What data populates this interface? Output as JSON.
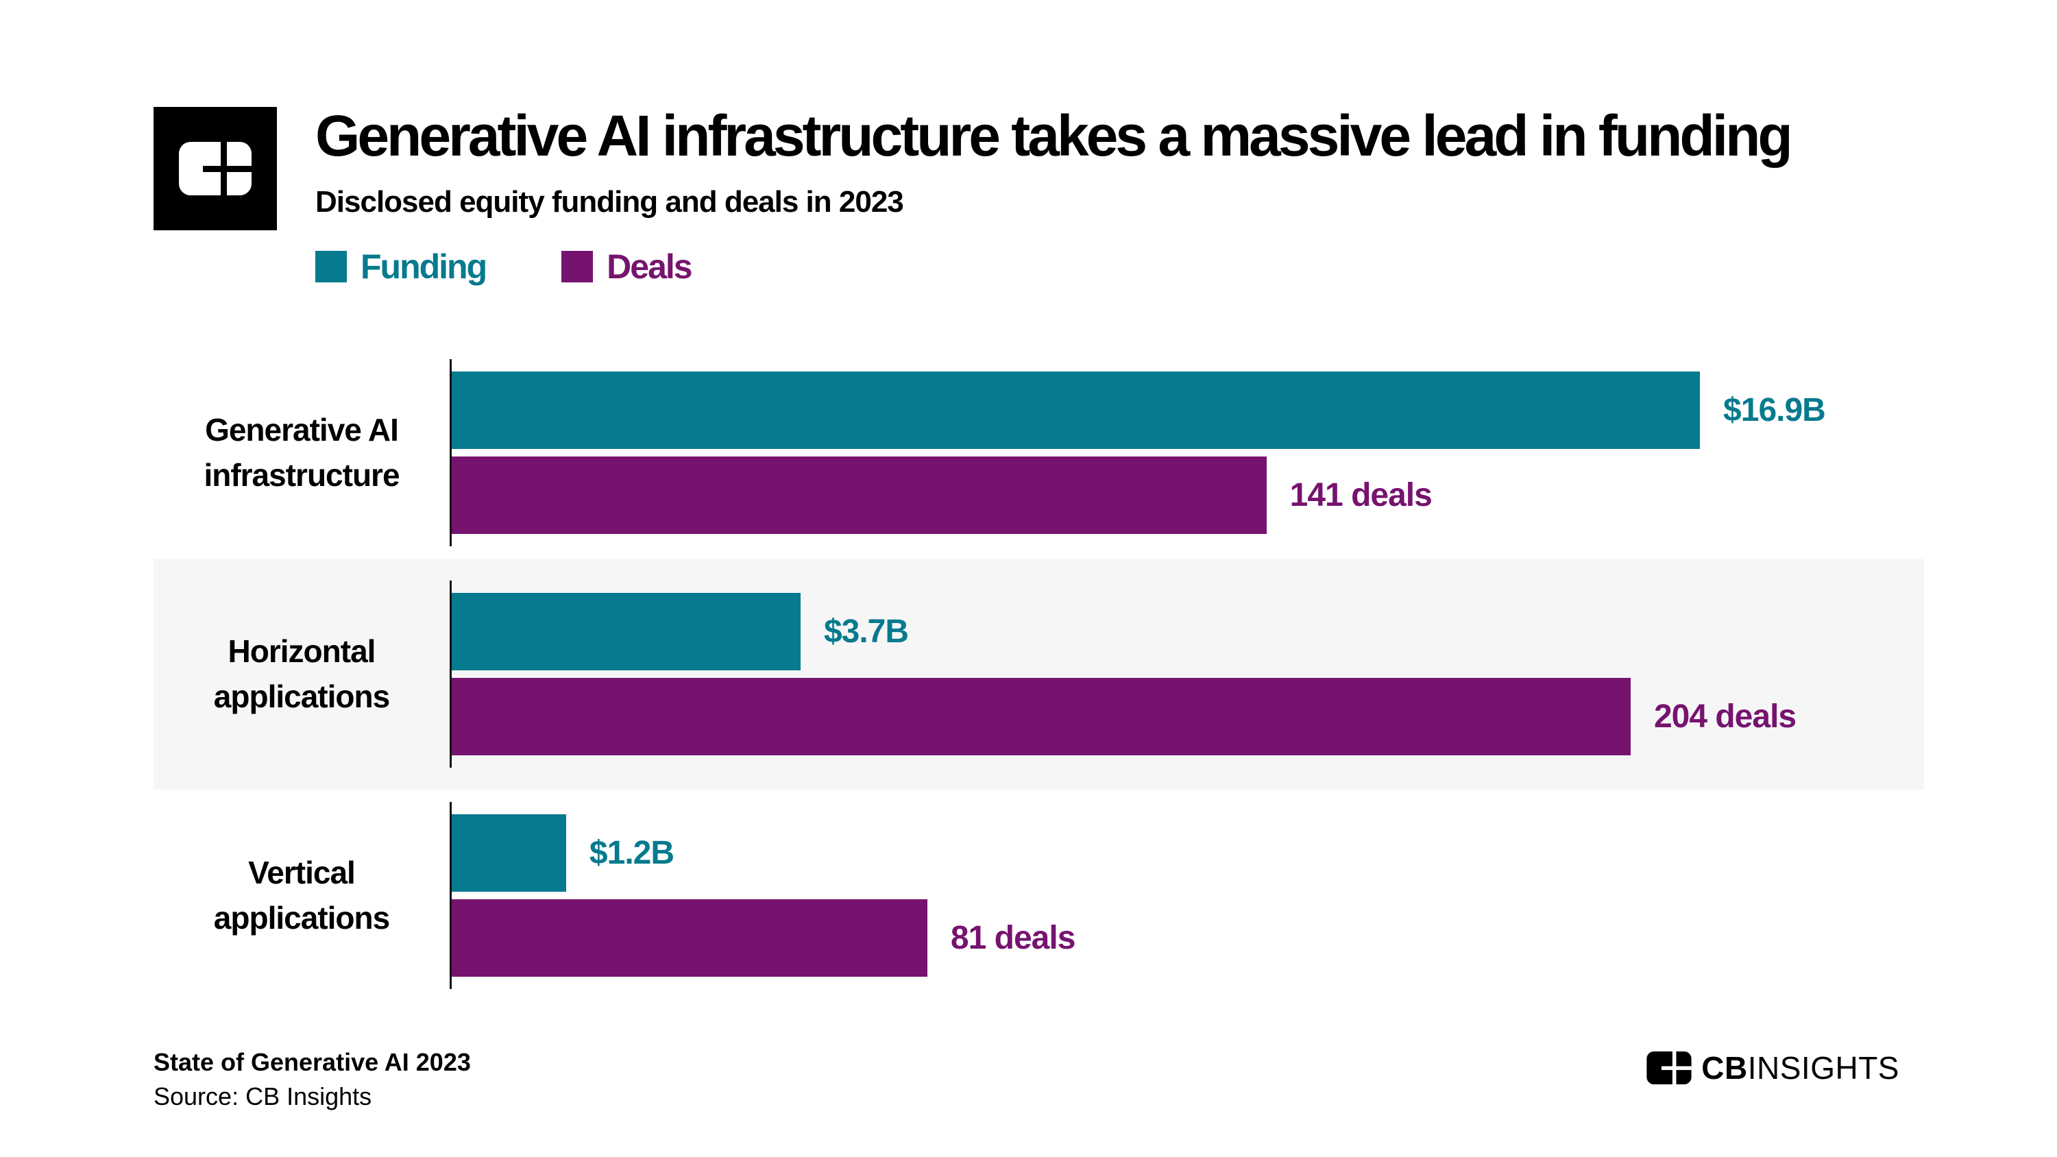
{
  "header": {
    "title": "Generative AI infrastructure takes a massive lead in funding",
    "subtitle": "Disclosed equity funding and deals in 2023"
  },
  "legend": {
    "funding_label": "Funding",
    "deals_label": "Deals"
  },
  "colors": {
    "funding_teal": "#067A8E",
    "deals_purple": "#76136F",
    "row_band_gray": "#F6F6F7",
    "text_black": "#000000"
  },
  "chart_data": {
    "type": "bar",
    "orientation": "horizontal",
    "title": "Generative AI infrastructure takes a massive lead in funding",
    "subtitle": "Disclosed equity funding and deals in 2023",
    "categories": [
      "Generative AI infrastructure",
      "Horizontal applications",
      "Vertical applications"
    ],
    "series": [
      {
        "name": "Funding",
        "unit": "USD billions",
        "values": [
          16.9,
          3.7,
          1.2
        ],
        "labels": [
          "$16.9B",
          "$3.7B",
          "$1.2B"
        ],
        "color": "#067A8E"
      },
      {
        "name": "Deals",
        "unit": "deals",
        "values": [
          141,
          204,
          81
        ],
        "labels": [
          "141 deals",
          "204 deals",
          "81 deals"
        ],
        "color": "#76136F"
      }
    ],
    "legend_position": "top-left",
    "grid": false,
    "value_labels": "end-of-bar",
    "bar_width_pct_hint": {
      "funding": [
        84.8,
        23.8,
        7.9
      ],
      "deals": [
        55.4,
        80.1,
        32.4
      ]
    }
  },
  "rows": [
    {
      "label_line1": "Generative AI",
      "label_line2": "infrastructure",
      "funding_label": "$16.9B",
      "deals_label": "141 deals",
      "funding_pct": 84.8,
      "deals_pct": 55.4
    },
    {
      "label_line1": "Horizontal",
      "label_line2": "applications",
      "funding_label": "$3.7B",
      "deals_label": "204 deals",
      "funding_pct": 23.8,
      "deals_pct": 80.1
    },
    {
      "label_line1": "Vertical",
      "label_line2": "applications",
      "funding_label": "$1.2B",
      "deals_label": "81 deals",
      "funding_pct": 7.9,
      "deals_pct": 32.4
    }
  ],
  "footer": {
    "line1": "State of Generative AI 2023",
    "line2": "Source: CB Insights",
    "brand_bold": "CB",
    "brand_light": "INSIGHTS"
  }
}
